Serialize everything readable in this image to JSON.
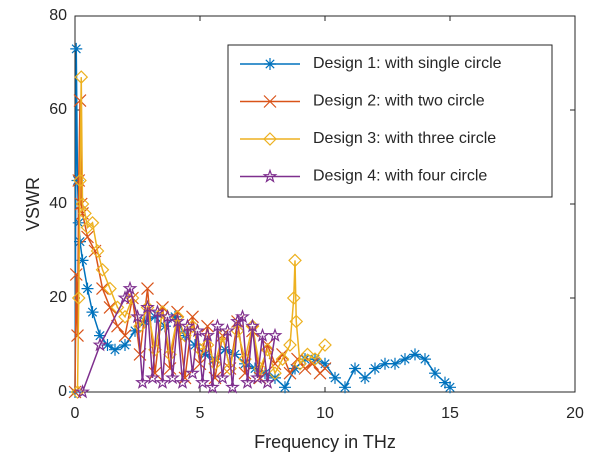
{
  "chart_data": {
    "type": "line",
    "xlabel": "Frequency in THz",
    "ylabel": "VSWR",
    "xlim": [
      0,
      20
    ],
    "xticks": [
      0,
      5,
      10,
      15,
      20
    ],
    "ylim": [
      0,
      80
    ],
    "yticks": [
      0,
      20,
      40,
      60,
      80
    ],
    "grid": false,
    "legend": "upper right",
    "series": [
      {
        "name": "Design 1: with single circle",
        "color": "#0072BD",
        "marker": "star",
        "x": [
          0,
          0.05,
          0.1,
          0.15,
          0.2,
          0.3,
          0.5,
          0.7,
          1,
          1.3,
          1.6,
          2,
          2.4,
          2.8,
          3.2,
          3.6,
          4,
          4.4,
          4.8,
          5.2,
          5.6,
          6,
          6.4,
          6.8,
          7.2,
          7.6,
          8,
          8.4,
          8.8,
          9.2,
          9.6,
          10,
          10.4,
          10.8,
          11.2,
          11.6,
          12,
          12.4,
          12.8,
          13.2,
          13.6,
          14,
          14.4,
          14.8,
          15
        ],
        "values": [
          0,
          73,
          45,
          36,
          32,
          28,
          22,
          17,
          12,
          10,
          9,
          10,
          13,
          15,
          16,
          14,
          16,
          12,
          10,
          8,
          7,
          9,
          8,
          6,
          5,
          4,
          3,
          1,
          5,
          7,
          7,
          6,
          3,
          1,
          5,
          3,
          5,
          6,
          6,
          7,
          8,
          7,
          4,
          2,
          1
        ]
      },
      {
        "name": "Design 2: with two circle",
        "color": "#D95319",
        "marker": "x",
        "x": [
          0,
          0.05,
          0.1,
          0.15,
          0.2,
          0.25,
          0.3,
          0.5,
          0.8,
          1.1,
          1.4,
          1.7,
          2,
          2.3,
          2.6,
          2.9,
          3.2,
          3.5,
          3.8,
          4.1,
          4.4,
          4.7,
          5,
          5.3,
          5.6,
          5.9,
          6.2,
          6.5,
          6.8,
          7.1,
          7.4,
          7.7,
          8,
          8.3,
          8.6,
          8.9,
          9.2,
          9.5,
          9.8,
          10
        ],
        "values": [
          0,
          25,
          12,
          45,
          62,
          40,
          38,
          33,
          30,
          22,
          18,
          14,
          12,
          20,
          8,
          22,
          4,
          18,
          5,
          17,
          3,
          16,
          6,
          14,
          3,
          12,
          5,
          15,
          4,
          13,
          3,
          10,
          6,
          8,
          4,
          7,
          5,
          6,
          4,
          5
        ]
      },
      {
        "name": "Design 3: with three circle",
        "color": "#EDB120",
        "marker": "diamond",
        "x": [
          0.1,
          0.15,
          0.2,
          0.25,
          0.3,
          0.4,
          0.5,
          0.7,
          0.9,
          1.1,
          1.4,
          1.7,
          2,
          2.3,
          2.6,
          2.9,
          3.2,
          3.5,
          3.8,
          4.1,
          4.4,
          4.7,
          5,
          5.3,
          5.6,
          5.9,
          6.2,
          6.5,
          6.8,
          7.1,
          7.4,
          7.7,
          8,
          8.3,
          8.6,
          8.75,
          8.8,
          8.85,
          9,
          9.3,
          9.6,
          10
        ],
        "values": [
          0,
          20,
          45,
          67,
          40,
          38,
          35,
          36,
          30,
          26,
          22,
          18,
          16,
          20,
          14,
          18,
          9,
          17,
          8,
          16,
          12,
          14,
          9,
          10,
          6,
          12,
          5,
          13,
          7,
          14,
          5,
          9,
          4,
          7,
          10,
          20,
          28,
          15,
          6,
          8,
          7,
          10
        ]
      },
      {
        "name": "Design 4: with four circle",
        "color": "#7E2F8E",
        "marker": "pentagram",
        "x": [
          0.3,
          1,
          2,
          2.2,
          2.5,
          2.7,
          2.9,
          3.1,
          3.3,
          3.5,
          3.7,
          3.9,
          4.1,
          4.3,
          4.5,
          4.7,
          4.9,
          5.1,
          5.3,
          5.5,
          5.7,
          5.9,
          6.1,
          6.3,
          6.5,
          6.7,
          6.9,
          7.1,
          7.3,
          7.5,
          7.7,
          8
        ],
        "values": [
          0,
          10,
          20,
          22,
          16,
          2,
          18,
          3,
          17,
          2,
          16,
          3,
          15,
          2,
          14,
          4,
          13,
          2,
          12,
          1,
          14,
          3,
          13,
          1,
          15,
          16,
          2,
          14,
          3,
          12,
          2,
          12
        ]
      }
    ]
  }
}
